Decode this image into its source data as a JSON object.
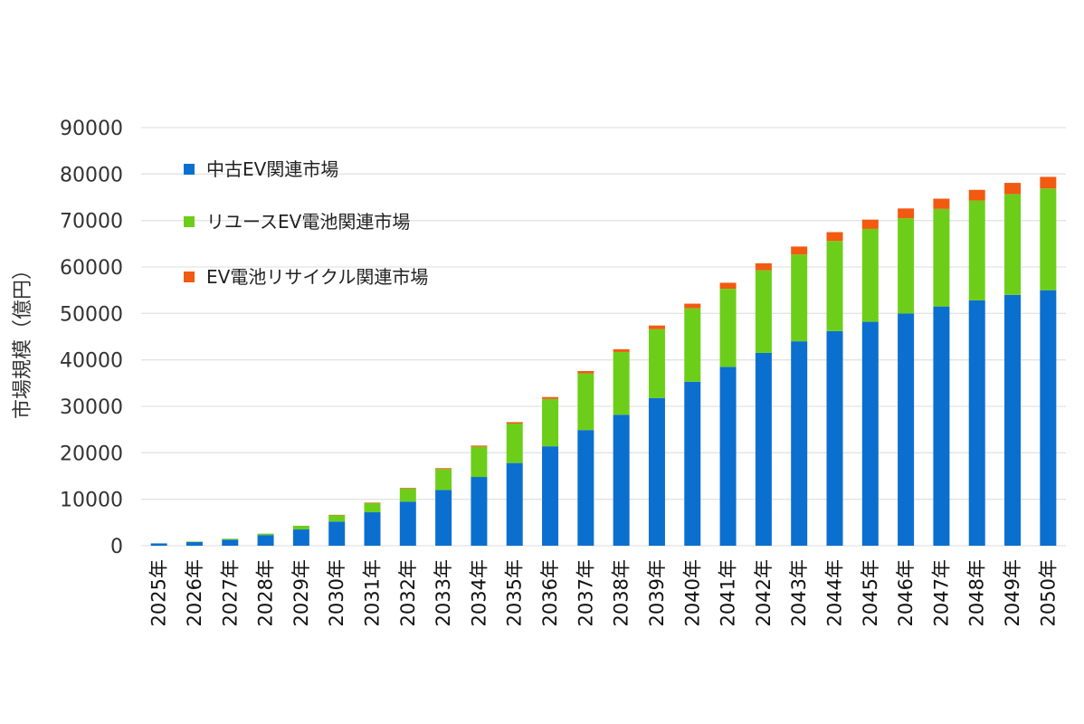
{
  "chart_data": {
    "type": "bar",
    "stacked": true,
    "ylabel": "市場規模（億円）",
    "ylim": [
      0,
      90000
    ],
    "yticks": [
      0,
      10000,
      20000,
      30000,
      40000,
      50000,
      60000,
      70000,
      80000,
      90000
    ],
    "grid": true,
    "legend_position": "top-left",
    "categories": [
      "2025年",
      "2026年",
      "2027年",
      "2028年",
      "2029年",
      "2030年",
      "2031年",
      "2032年",
      "2033年",
      "2034年",
      "2035年",
      "2036年",
      "2037年",
      "2038年",
      "2039年",
      "2040年",
      "2041年",
      "2042年",
      "2043年",
      "2044年",
      "2045年",
      "2046年",
      "2047年",
      "2048年",
      "2049年",
      "2050年"
    ],
    "series": [
      {
        "name": "中古EV関連市場",
        "color": "#0B6FCF",
        "values": [
          500,
          800,
          1300,
          2300,
          3500,
          5200,
          7200,
          9500,
          12000,
          14800,
          17800,
          21400,
          24900,
          28200,
          31800,
          35300,
          38500,
          41500,
          44000,
          46200,
          48200,
          50000,
          51500,
          52800,
          54000,
          55000
        ]
      },
      {
        "name": "リユースEV電池関連市場",
        "color": "#6DCE1A",
        "values": [
          0,
          100,
          200,
          300,
          800,
          1400,
          2000,
          2800,
          4500,
          6500,
          8500,
          10200,
          12200,
          13500,
          14800,
          15800,
          16800,
          17800,
          18700,
          19400,
          20000,
          20500,
          21000,
          21500,
          21700,
          21900
        ]
      },
      {
        "name": "EV電池リサイクル関連市場",
        "color": "#F25A11",
        "values": [
          0,
          0,
          0,
          0,
          0,
          50,
          100,
          150,
          200,
          250,
          300,
          400,
          500,
          600,
          800,
          1000,
          1300,
          1500,
          1700,
          1900,
          2000,
          2100,
          2200,
          2300,
          2400,
          2500
        ]
      }
    ]
  }
}
